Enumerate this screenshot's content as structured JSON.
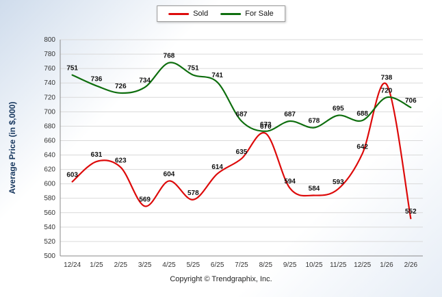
{
  "legend": {
    "items": [
      {
        "label": "Sold"
      },
      {
        "label": "For Sale"
      }
    ]
  },
  "chart_data": {
    "type": "line",
    "title": "",
    "xlabel": "",
    "ylabel": "Average Price (in $,000)",
    "categories": [
      "12/24",
      "1/25",
      "2/25",
      "3/25",
      "4/25",
      "5/25",
      "6/25",
      "7/25",
      "8/25",
      "9/25",
      "10/25",
      "11/25",
      "12/25",
      "1/26",
      "2/26"
    ],
    "series": [
      {
        "name": "Sold",
        "color": "#dd0a0a",
        "values": [
          603,
          631,
          623,
          569,
          604,
          578,
          614,
          635,
          670,
          594,
          584,
          593,
          642,
          738,
          552
        ]
      },
      {
        "name": "For Sale",
        "color": "#0e6e0e",
        "values": [
          751,
          736,
          726,
          734,
          768,
          751,
          741,
          687,
          673,
          687,
          678,
          695,
          688,
          720,
          706
        ]
      }
    ],
    "ylim": [
      500,
      800
    ],
    "ytick_step": 20,
    "grid": true,
    "legend_position": "top",
    "label_color": "#111111",
    "grid_color": "#d9d9d9",
    "axis_color": "#8a8a8a",
    "tick_color": "#333333",
    "ylabel_color": "#17375e"
  },
  "footer": {
    "copyright": "Copyright © Trendgraphix, Inc."
  }
}
